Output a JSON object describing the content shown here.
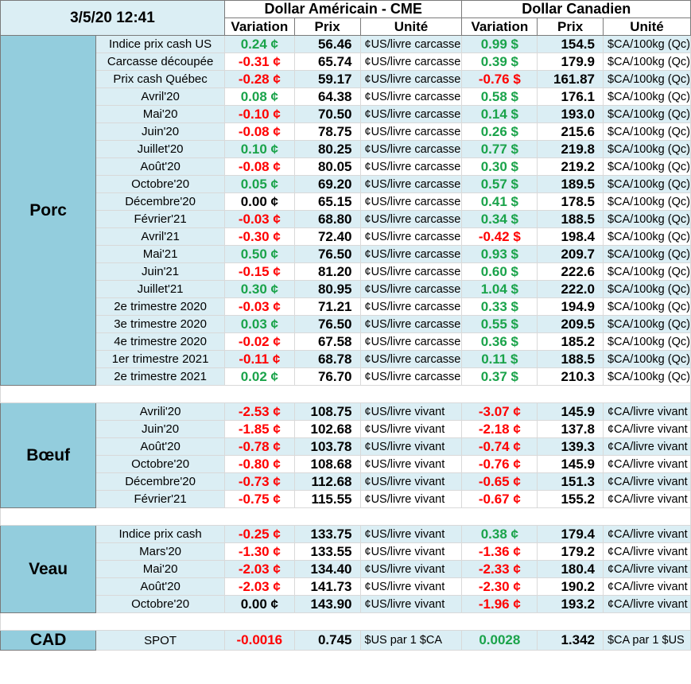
{
  "header": {
    "timestamp": "3/5/20 12:41",
    "usd_group": "Dollar Américain - CME",
    "cad_group": "Dollar Canadien",
    "col_variation": "Variation",
    "col_prix": "Prix",
    "col_unite": "Unité"
  },
  "colors": {
    "positive": "#1aa34a",
    "negative": "#ff0000",
    "category_bg": "#93cddd",
    "row_shade": "#dbeef4"
  },
  "sections": [
    {
      "category": "Porc",
      "rows": [
        {
          "label": "Indice prix cash US",
          "us_var": "0.24 ¢",
          "us_sign": "pos",
          "us_price": "56.46",
          "us_unit": "¢US/livre carcasse",
          "ca_var": "0.99 $",
          "ca_sign": "pos",
          "ca_price": "154.5",
          "ca_unit": "$CA/100kg (Qc)"
        },
        {
          "label": "Carcasse découpée",
          "us_var": "-0.31 ¢",
          "us_sign": "neg",
          "us_price": "65.74",
          "us_unit": "¢US/livre carcasse",
          "ca_var": "0.39 $",
          "ca_sign": "pos",
          "ca_price": "179.9",
          "ca_unit": "$CA/100kg (Qc)"
        },
        {
          "label": "Prix cash Québec",
          "us_var": "-0.28 ¢",
          "us_sign": "neg",
          "us_price": "59.17",
          "us_unit": "¢US/livre carcasse",
          "ca_var": "-0.76 $",
          "ca_sign": "neg",
          "ca_price": "161.87",
          "ca_unit": "$CA/100kg (Qc)"
        },
        {
          "label": "Avril'20",
          "us_var": "0.08 ¢",
          "us_sign": "pos",
          "us_price": "64.38",
          "us_unit": "¢US/livre carcasse",
          "ca_var": "0.58 $",
          "ca_sign": "pos",
          "ca_price": "176.1",
          "ca_unit": "$CA/100kg (Qc)"
        },
        {
          "label": "Mai'20",
          "us_var": "-0.10 ¢",
          "us_sign": "neg",
          "us_price": "70.50",
          "us_unit": "¢US/livre carcasse",
          "ca_var": "0.14 $",
          "ca_sign": "pos",
          "ca_price": "193.0",
          "ca_unit": "$CA/100kg (Qc)"
        },
        {
          "label": "Juin'20",
          "us_var": "-0.08 ¢",
          "us_sign": "neg",
          "us_price": "78.75",
          "us_unit": "¢US/livre carcasse",
          "ca_var": "0.26 $",
          "ca_sign": "pos",
          "ca_price": "215.6",
          "ca_unit": "$CA/100kg (Qc)"
        },
        {
          "label": "Juillet'20",
          "us_var": "0.10 ¢",
          "us_sign": "pos",
          "us_price": "80.25",
          "us_unit": "¢US/livre carcasse",
          "ca_var": "0.77 $",
          "ca_sign": "pos",
          "ca_price": "219.8",
          "ca_unit": "$CA/100kg (Qc)"
        },
        {
          "label": "Août'20",
          "us_var": "-0.08 ¢",
          "us_sign": "neg",
          "us_price": "80.05",
          "us_unit": "¢US/livre carcasse",
          "ca_var": "0.30 $",
          "ca_sign": "pos",
          "ca_price": "219.2",
          "ca_unit": "$CA/100kg (Qc)"
        },
        {
          "label": "Octobre'20",
          "us_var": "0.05 ¢",
          "us_sign": "pos",
          "us_price": "69.20",
          "us_unit": "¢US/livre carcasse",
          "ca_var": "0.57 $",
          "ca_sign": "pos",
          "ca_price": "189.5",
          "ca_unit": "$CA/100kg (Qc)"
        },
        {
          "label": "Décembre'20",
          "us_var": "0.00 ¢",
          "us_sign": "zero",
          "us_price": "65.15",
          "us_unit": "¢US/livre carcasse",
          "ca_var": "0.41 $",
          "ca_sign": "pos",
          "ca_price": "178.5",
          "ca_unit": "$CA/100kg (Qc)"
        },
        {
          "label": "Février'21",
          "us_var": "-0.03 ¢",
          "us_sign": "neg",
          "us_price": "68.80",
          "us_unit": "¢US/livre carcasse",
          "ca_var": "0.34 $",
          "ca_sign": "pos",
          "ca_price": "188.5",
          "ca_unit": "$CA/100kg (Qc)"
        },
        {
          "label": "Avril'21",
          "us_var": "-0.30 ¢",
          "us_sign": "neg",
          "us_price": "72.40",
          "us_unit": "¢US/livre carcasse",
          "ca_var": "-0.42 $",
          "ca_sign": "neg",
          "ca_price": "198.4",
          "ca_unit": "$CA/100kg (Qc)"
        },
        {
          "label": "Mai'21",
          "us_var": "0.50 ¢",
          "us_sign": "pos",
          "us_price": "76.50",
          "us_unit": "¢US/livre carcasse",
          "ca_var": "0.93 $",
          "ca_sign": "pos",
          "ca_price": "209.7",
          "ca_unit": "$CA/100kg (Qc)"
        },
        {
          "label": "Juin'21",
          "us_var": "-0.15 ¢",
          "us_sign": "neg",
          "us_price": "81.20",
          "us_unit": "¢US/livre carcasse",
          "ca_var": "0.60 $",
          "ca_sign": "pos",
          "ca_price": "222.6",
          "ca_unit": "$CA/100kg (Qc)"
        },
        {
          "label": "Juillet'21",
          "us_var": "0.30 ¢",
          "us_sign": "pos",
          "us_price": "80.95",
          "us_unit": "¢US/livre carcasse",
          "ca_var": "1.04 $",
          "ca_sign": "pos",
          "ca_price": "222.0",
          "ca_unit": "$CA/100kg (Qc)"
        },
        {
          "label": "2e trimestre 2020",
          "us_var": "-0.03 ¢",
          "us_sign": "neg",
          "us_price": "71.21",
          "us_unit": "¢US/livre carcasse",
          "ca_var": "0.33 $",
          "ca_sign": "pos",
          "ca_price": "194.9",
          "ca_unit": "$CA/100kg (Qc)"
        },
        {
          "label": "3e trimestre 2020",
          "us_var": "0.03 ¢",
          "us_sign": "pos",
          "us_price": "76.50",
          "us_unit": "¢US/livre carcasse",
          "ca_var": "0.55 $",
          "ca_sign": "pos",
          "ca_price": "209.5",
          "ca_unit": "$CA/100kg (Qc)"
        },
        {
          "label": "4e trimestre 2020",
          "us_var": "-0.02 ¢",
          "us_sign": "neg",
          "us_price": "67.58",
          "us_unit": "¢US/livre carcasse",
          "ca_var": "0.36 $",
          "ca_sign": "pos",
          "ca_price": "185.2",
          "ca_unit": "$CA/100kg (Qc)"
        },
        {
          "label": "1er trimestre 2021",
          "us_var": "-0.11 ¢",
          "us_sign": "neg",
          "us_price": "68.78",
          "us_unit": "¢US/livre carcasse",
          "ca_var": "0.11 $",
          "ca_sign": "pos",
          "ca_price": "188.5",
          "ca_unit": "$CA/100kg (Qc)"
        },
        {
          "label": "2e trimestre 2021",
          "us_var": "0.02 ¢",
          "us_sign": "pos",
          "us_price": "76.70",
          "us_unit": "¢US/livre carcasse",
          "ca_var": "0.37 $",
          "ca_sign": "pos",
          "ca_price": "210.3",
          "ca_unit": "$CA/100kg (Qc)"
        }
      ]
    },
    {
      "category": "Bœuf",
      "rows": [
        {
          "label": "Avrili'20",
          "us_var": "-2.53 ¢",
          "us_sign": "neg",
          "us_price": "108.75",
          "us_unit": "¢US/livre vivant",
          "ca_var": "-3.07 ¢",
          "ca_sign": "neg",
          "ca_price": "145.9",
          "ca_unit": "¢CA/livre vivant"
        },
        {
          "label": "Juin'20",
          "us_var": "-1.85 ¢",
          "us_sign": "neg",
          "us_price": "102.68",
          "us_unit": "¢US/livre vivant",
          "ca_var": "-2.18 ¢",
          "ca_sign": "neg",
          "ca_price": "137.8",
          "ca_unit": "¢CA/livre vivant"
        },
        {
          "label": "Août'20",
          "us_var": "-0.78 ¢",
          "us_sign": "neg",
          "us_price": "103.78",
          "us_unit": "¢US/livre vivant",
          "ca_var": "-0.74 ¢",
          "ca_sign": "neg",
          "ca_price": "139.3",
          "ca_unit": "¢CA/livre vivant"
        },
        {
          "label": "Octobre'20",
          "us_var": "-0.80 ¢",
          "us_sign": "neg",
          "us_price": "108.68",
          "us_unit": "¢US/livre vivant",
          "ca_var": "-0.76 ¢",
          "ca_sign": "neg",
          "ca_price": "145.9",
          "ca_unit": "¢CA/livre vivant"
        },
        {
          "label": "Décembre'20",
          "us_var": "-0.73 ¢",
          "us_sign": "neg",
          "us_price": "112.68",
          "us_unit": "¢US/livre vivant",
          "ca_var": "-0.65 ¢",
          "ca_sign": "neg",
          "ca_price": "151.3",
          "ca_unit": "¢CA/livre vivant"
        },
        {
          "label": "Février'21",
          "us_var": "-0.75 ¢",
          "us_sign": "neg",
          "us_price": "115.55",
          "us_unit": "¢US/livre vivant",
          "ca_var": "-0.67 ¢",
          "ca_sign": "neg",
          "ca_price": "155.2",
          "ca_unit": "¢CA/livre vivant"
        }
      ]
    },
    {
      "category": "Veau",
      "rows": [
        {
          "label": "Indice prix cash",
          "us_var": "-0.25 ¢",
          "us_sign": "neg",
          "us_price": "133.75",
          "us_unit": "¢US/livre vivant",
          "ca_var": "0.38 ¢",
          "ca_sign": "pos",
          "ca_price": "179.4",
          "ca_unit": "¢CA/livre vivant"
        },
        {
          "label": "Mars'20",
          "us_var": "-1.30 ¢",
          "us_sign": "neg",
          "us_price": "133.55",
          "us_unit": "¢US/livre vivant",
          "ca_var": "-1.36 ¢",
          "ca_sign": "neg",
          "ca_price": "179.2",
          "ca_unit": "¢CA/livre vivant"
        },
        {
          "label": "Mai'20",
          "us_var": "-2.03 ¢",
          "us_sign": "neg",
          "us_price": "134.40",
          "us_unit": "¢US/livre vivant",
          "ca_var": "-2.33 ¢",
          "ca_sign": "neg",
          "ca_price": "180.4",
          "ca_unit": "¢CA/livre vivant"
        },
        {
          "label": "Août'20",
          "us_var": "-2.03 ¢",
          "us_sign": "neg",
          "us_price": "141.73",
          "us_unit": "¢US/livre vivant",
          "ca_var": "-2.30 ¢",
          "ca_sign": "neg",
          "ca_price": "190.2",
          "ca_unit": "¢CA/livre vivant"
        },
        {
          "label": "Octobre'20",
          "us_var": "0.00 ¢",
          "us_sign": "zero",
          "us_price": "143.90",
          "us_unit": "¢US/livre vivant",
          "ca_var": "-1.96 ¢",
          "ca_sign": "neg",
          "ca_price": "193.2",
          "ca_unit": "¢CA/livre vivant"
        }
      ]
    },
    {
      "category": "CAD",
      "rows": [
        {
          "label": "SPOT",
          "us_var": "-0.0016",
          "us_sign": "neg",
          "us_price": "0.745",
          "us_unit": "$US par 1 $CA",
          "ca_var": "0.0028",
          "ca_sign": "pos",
          "ca_price": "1.342",
          "ca_unit": "$CA par 1 $US"
        }
      ]
    }
  ]
}
